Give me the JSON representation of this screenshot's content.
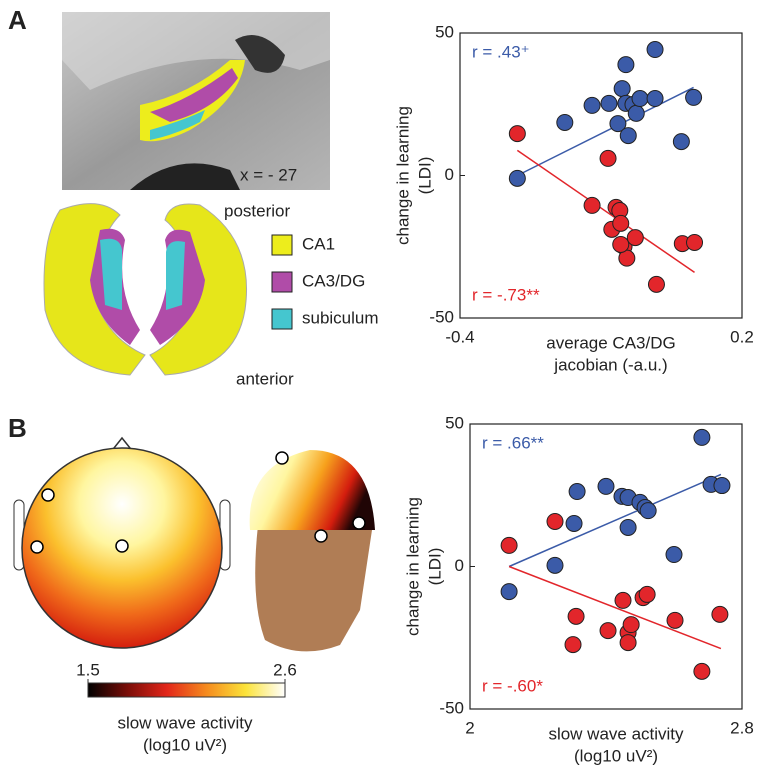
{
  "panels": [
    "A",
    "B"
  ],
  "mri": {
    "label": "x = - 27",
    "posterior": "posterior",
    "anterior": "anterior",
    "legend": [
      {
        "label": "CA1",
        "color": "#eded1c"
      },
      {
        "label": "CA3/DG",
        "color": "#b04ca8"
      },
      {
        "label": "subiculum",
        "color": "#45c6cf"
      }
    ]
  },
  "colorbar": {
    "lim": [
      1.5,
      2.6
    ],
    "ticks": [
      1.5,
      2.6
    ],
    "label": [
      "slow wave activity",
      "(log10 uV²)"
    ]
  },
  "chart_data": [
    {
      "type": "scatter",
      "xlabel": [
        "average CA3/DG",
        "jacobian (-a.u.)"
      ],
      "ylabel": [
        "change in learning",
        "(LDI)"
      ],
      "xlim": [
        -0.4,
        0.2
      ],
      "xticks": [
        -0.4,
        0.2
      ],
      "ylim": [
        -50,
        50
      ],
      "yticks": [
        -50,
        0,
        50
      ],
      "series": [
        {
          "color": "#3b5ba8",
          "annotation": "r = .43⁺",
          "x": [
            -0.278,
            -0.177,
            -0.119,
            -0.083,
            -0.064,
            -0.055,
            -0.047,
            -0.032,
            -0.025,
            -0.017,
            -0.047,
            0.015,
            -0.042,
            0.071,
            0.015,
            0.097
          ],
          "values": [
            -1,
            18.6,
            24.6,
            25.3,
            18.2,
            30.5,
            25.3,
            24.9,
            21.8,
            27,
            38.9,
            27,
            14,
            11.9,
            44.2,
            27.4
          ],
          "fit_x": [
            -0.278,
            0.097
          ],
          "fit_y": [
            0,
            30.9
          ]
        },
        {
          "color": "#e2262b",
          "annotation": "r = -.73**",
          "x": [
            -0.278,
            -0.085,
            -0.119,
            -0.068,
            -0.06,
            -0.077,
            -0.058,
            -0.051,
            -0.045,
            -0.058,
            -0.027,
            0.073,
            0.099,
            0.018
          ],
          "values": [
            14.7,
            6,
            -10.5,
            -11.2,
            -12.3,
            -18.9,
            -16.8,
            -24.9,
            -29,
            -24.2,
            -21.8,
            -23.9,
            -23.5,
            -38.2
          ],
          "fit_x": [
            -0.278,
            0.099
          ],
          "fit_y": [
            8.8,
            -34
          ]
        }
      ]
    },
    {
      "type": "scatter",
      "xlabel": [
        "slow wave activity",
        "(log10 uV²)"
      ],
      "ylabel": [
        "change in learning",
        "(LDI)"
      ],
      "xlim": [
        2,
        2.8
      ],
      "xticks": [
        2,
        2.8
      ],
      "ylim": [
        -50,
        50
      ],
      "yticks": [
        -50,
        0,
        50
      ],
      "series": [
        {
          "color": "#3b5ba8",
          "annotation": "r = .66**",
          "x": [
            2.115,
            2.25,
            2.315,
            2.306,
            2.4,
            2.447,
            2.465,
            2.465,
            2.5,
            2.515,
            2.524,
            2.6,
            2.682,
            2.709,
            2.741
          ],
          "values": [
            -8.8,
            0.4,
            26.3,
            15.1,
            28.1,
            24.6,
            24.2,
            13.7,
            22.5,
            20.7,
            19.6,
            4.2,
            45.3,
            28.8,
            28.4
          ],
          "fit_x": [
            2.115,
            2.738
          ],
          "fit_y": [
            0,
            32.3
          ]
        },
        {
          "color": "#e2262b",
          "annotation": "r = -.60*",
          "x": [
            2.115,
            2.25,
            2.312,
            2.303,
            2.406,
            2.45,
            2.465,
            2.474,
            2.465,
            2.509,
            2.521,
            2.603,
            2.735,
            2.682
          ],
          "values": [
            7.4,
            15.8,
            -17.5,
            -27.4,
            -22.5,
            -11.9,
            -23.2,
            -20.4,
            -26.7,
            -10.9,
            -9.8,
            -18.9,
            -16.8,
            -36.8
          ],
          "fit_x": [
            2.115,
            2.738
          ],
          "fit_y": [
            0,
            -28.8
          ]
        }
      ]
    }
  ]
}
